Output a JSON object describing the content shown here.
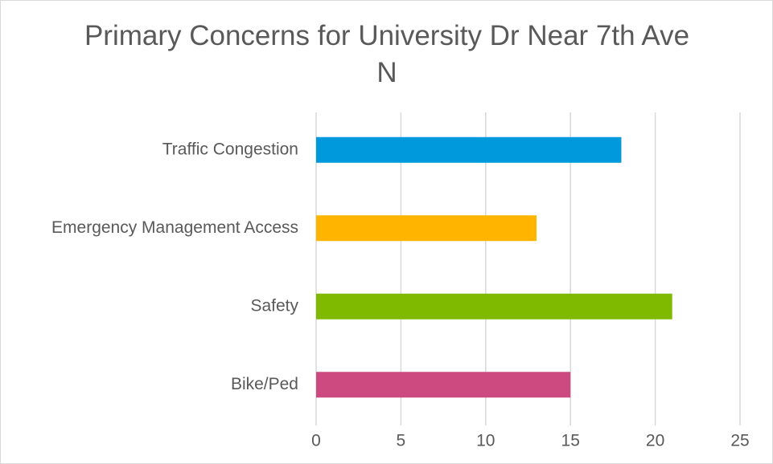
{
  "chart_data": {
    "type": "barh",
    "title": "Primary Concerns for University Dr Near 7th Ave N",
    "categories": [
      "Traffic Congestion",
      "Emergency Management Access",
      "Safety",
      "Bike/Ped"
    ],
    "values": [
      18,
      13,
      21,
      15
    ],
    "colors": [
      "#0099dc",
      "#ffb400",
      "#7fba00",
      "#cc4a80"
    ],
    "xlim": [
      0,
      25
    ],
    "xticks": [
      0,
      5,
      10,
      15,
      20,
      25
    ],
    "grid": true
  }
}
